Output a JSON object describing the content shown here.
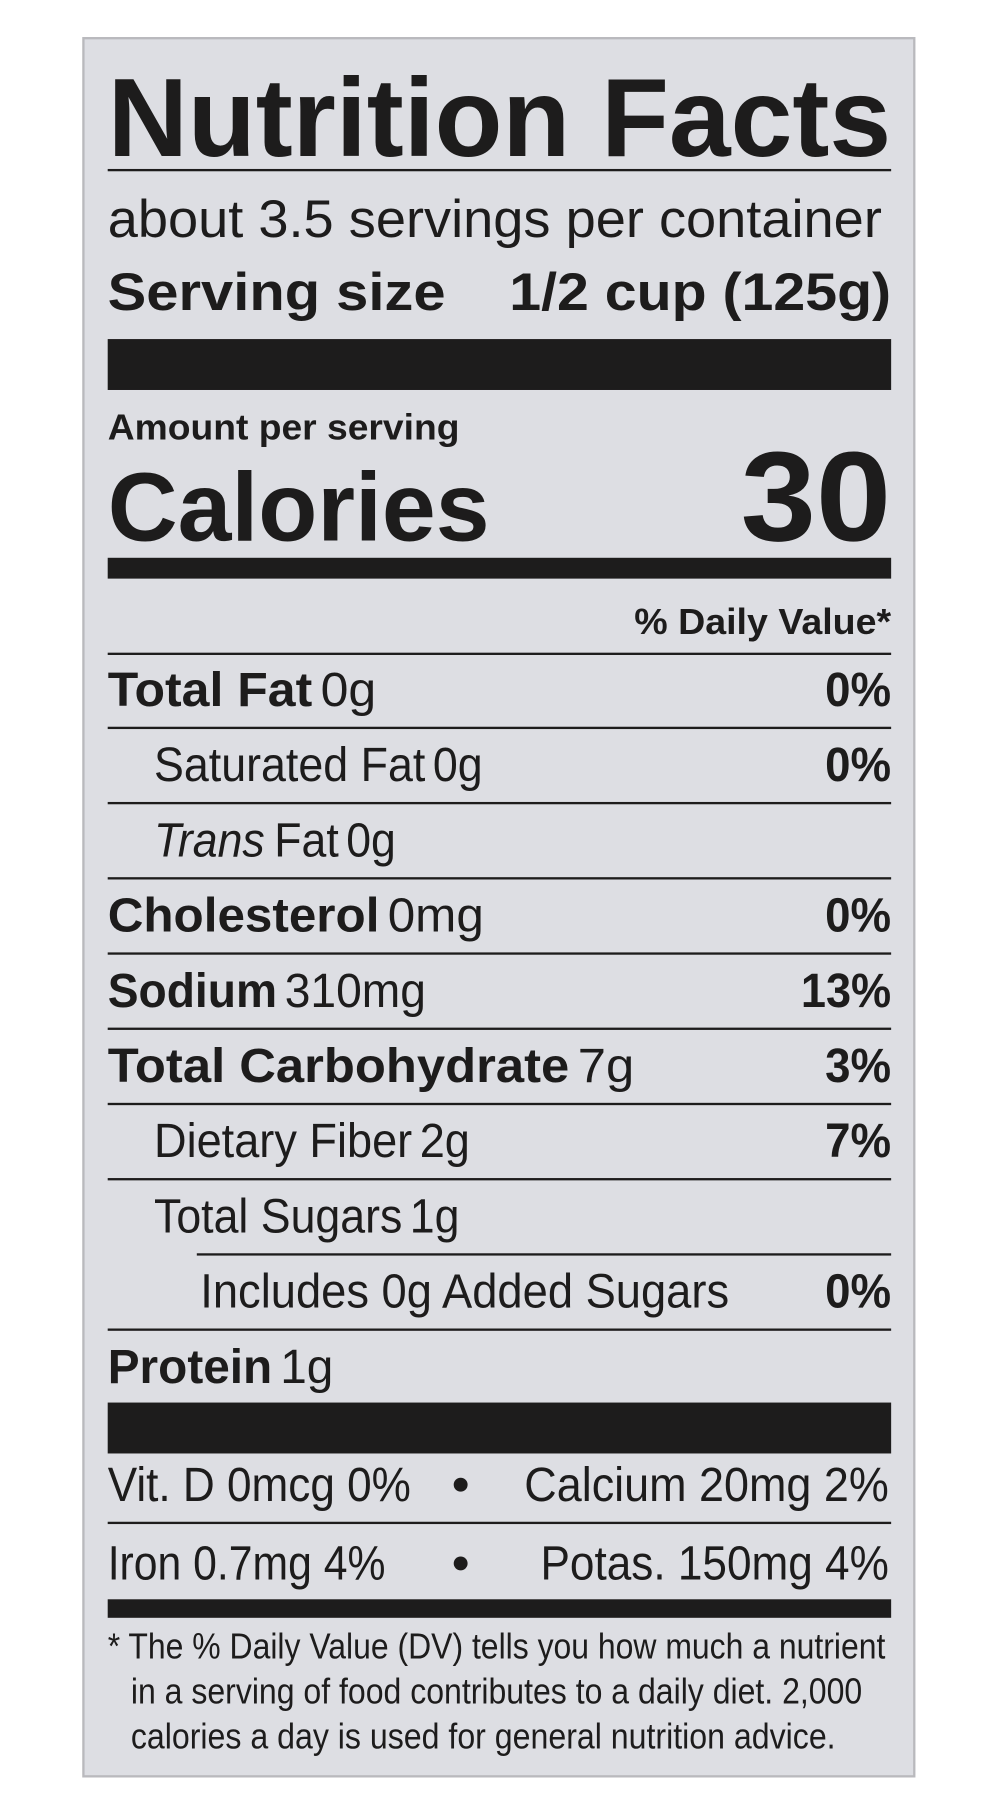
{
  "title": "Nutrition Facts",
  "servings_per_container": "about 3.5 servings per container",
  "serving_size": {
    "label": "Serving size",
    "value": "1/2 cup (125g)"
  },
  "amount_per_serving": "Amount per serving",
  "calories": {
    "label": "Calories",
    "value": "30"
  },
  "daily_value_header": "% Daily Value*",
  "nutrients": [
    {
      "name": "Total Fat",
      "amount": "0g",
      "dv": "0%"
    },
    {
      "name": "Saturated Fat",
      "amount": "0g",
      "dv": "0%"
    },
    {
      "name": "Trans",
      "name_rest": "Fat",
      "amount": "0g"
    },
    {
      "name": "Cholesterol",
      "amount": "0mg",
      "dv": "0%"
    },
    {
      "name": "Sodium",
      "amount": "310mg",
      "dv": "13%"
    },
    {
      "name": "Total Carbohydrate",
      "amount": "7g",
      "dv": "3%"
    },
    {
      "name": "Dietary Fiber",
      "amount": "2g",
      "dv": "7%"
    },
    {
      "name": "Total Sugars",
      "amount": "1g"
    },
    {
      "name": "Includes 0g Added Sugars",
      "dv": "0%"
    },
    {
      "name": "Protein",
      "amount": "1g"
    }
  ],
  "vitamins": [
    [
      "Vit. D 0mcg 0%",
      "Calcium 20mg 2%"
    ],
    [
      "Iron 0.7mg 4%",
      "Potas. 150mg 4%"
    ]
  ],
  "footnote": [
    "* The % Daily Value (DV) tells you how much a nutrient",
    "in a serving of food contributes to a daily diet. 2,000",
    "calories a day is used for general nutrition advice."
  ]
}
